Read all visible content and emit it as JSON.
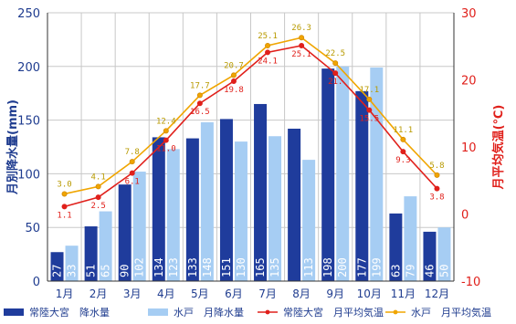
{
  "chart_data": {
    "type": "bar",
    "categories": [
      "1月",
      "2月",
      "3月",
      "4月",
      "5月",
      "6月",
      "7月",
      "8月",
      "9月",
      "10月",
      "11月",
      "12月"
    ],
    "series": [
      {
        "name": "常陸大宮　降水量",
        "kind": "bar",
        "axis": "left",
        "color": "#1f3c9c",
        "values": [
          27,
          51,
          90,
          134,
          133,
          151,
          165,
          142,
          198,
          177,
          63,
          46
        ],
        "labels": [
          "27",
          "51",
          "90",
          "134",
          "133",
          "151",
          "165",
          "",
          "198",
          "177",
          "63",
          "46"
        ]
      },
      {
        "name": "水戸　月降水量",
        "kind": "bar",
        "axis": "left",
        "color": "#a6cdf3",
        "values": [
          33,
          65,
          102,
          123,
          148,
          130,
          135,
          113,
          200,
          199,
          79,
          50
        ],
        "labels": [
          "33",
          "65",
          "102",
          "123",
          "148",
          "130",
          "135",
          "113",
          "200",
          "199",
          "79",
          "50"
        ]
      },
      {
        "name": "常陸大宮　月平均気温",
        "kind": "line",
        "axis": "right",
        "color": "#e0201b",
        "values": [
          1.1,
          2.5,
          6.1,
          11.0,
          16.5,
          19.8,
          24.1,
          25.1,
          21.0,
          15.5,
          9.3,
          3.8
        ],
        "labels": [
          "1.1",
          "2.5",
          "6.1",
          "11.0",
          "16.5",
          "19.8",
          "24.1",
          "25.1",
          "21.",
          "15.5",
          "9.3",
          "3.8"
        ]
      },
      {
        "name": "水戸　月平均気温",
        "kind": "line",
        "axis": "right",
        "color": "#f0a500",
        "values": [
          3.0,
          4.1,
          7.8,
          12.4,
          17.7,
          20.7,
          25.1,
          26.3,
          22.5,
          17.1,
          11.1,
          5.8
        ],
        "labels": [
          "3.0",
          "4.1",
          "7.8",
          "12.4",
          "17.7",
          "20.7",
          "25.1",
          "26.3",
          "22.5",
          "17.1",
          "11.1",
          "5.8"
        ]
      }
    ],
    "ylabel_left": "月別降水量(mm)",
    "ylabel_right": "月平均気温(℃)",
    "ylim_left": [
      0,
      250
    ],
    "yticks_left": [
      "0",
      "50",
      "100",
      "150",
      "200",
      "250"
    ],
    "ylim_right": [
      -10,
      30
    ],
    "yticks_right": [
      "-10",
      "0",
      "10",
      "20",
      "30"
    ],
    "grid": true,
    "legend": "bottom"
  }
}
